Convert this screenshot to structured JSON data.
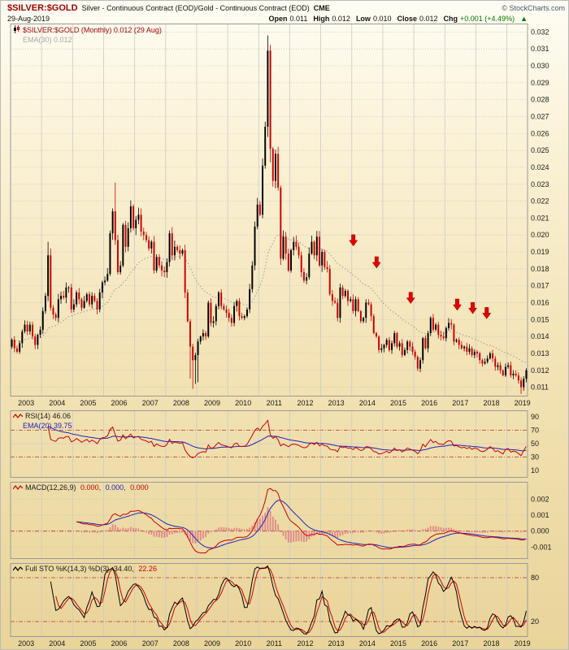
{
  "header": {
    "symbol": "$SILVER:$GOLD",
    "description": "Silver - Continuous Contract (EOD)/Gold - Continuous Contract (EOD)",
    "exchange": "CME",
    "watermark": "© StockCharts.com",
    "date": "29-Aug-2019",
    "quote": {
      "open_label": "Open",
      "open": "0.011",
      "high_label": "High",
      "high": "0.012",
      "low_label": "Low",
      "low": "0.010",
      "close_label": "Close",
      "close": "0.012",
      "chg_label": "Chg",
      "chg": "+0.001 (+4.49%)",
      "chg_arrow": "▲"
    }
  },
  "legend": {
    "main": {
      "title": "$SILVER:$GOLD (Monthly) 0.012 (29 Aug)",
      "overlay": "EMA(30) 0.012"
    },
    "rsi": {
      "title": "RSI(14) 46.06",
      "overlay": "EMA(20) 39.75"
    },
    "macd": {
      "label": "MACD(12,26,9)",
      "values": [
        "0.000,",
        "0.000,",
        "0.000"
      ]
    },
    "sto": {
      "label": "Full STO %K(14,3) %D(3)",
      "values": [
        "34.40,",
        "22.26"
      ]
    }
  },
  "colors": {
    "maroon": "#990000",
    "red": "#cc0000",
    "blue": "#2222bb",
    "green": "#007700",
    "ema_gray": "#999999",
    "hist_pink": "#e08888",
    "grid": "#bdbdbd",
    "band_red": "#b03030"
  },
  "chart_data": [
    {
      "type": "candlestick",
      "symbol": "$SILVER:$GOLD",
      "timeframe": "Monthly",
      "x_start": "2003-01",
      "months": 200,
      "ylim": [
        0.0105,
        0.0325
      ],
      "y_tick_step": 0.001,
      "x_tick_years": [
        2003,
        2004,
        2005,
        2006,
        2007,
        2008,
        2009,
        2010,
        2011,
        2012,
        2013,
        2014,
        2015,
        2016,
        2017,
        2018,
        2019
      ],
      "up_color": "#000000",
      "down_color": "#cc0000",
      "ema_color": "#999999",
      "ema_period": 30,
      "closes": [
        0.0138,
        0.0133,
        0.0131,
        0.0136,
        0.0143,
        0.0147,
        0.0143,
        0.0147,
        0.014,
        0.0135,
        0.0141,
        0.0144,
        0.0155,
        0.0164,
        0.0188,
        0.0157,
        0.0153,
        0.0151,
        0.0162,
        0.0164,
        0.0163,
        0.0169,
        0.0169,
        0.0156,
        0.0159,
        0.0166,
        0.0162,
        0.0157,
        0.0161,
        0.0165,
        0.0159,
        0.0164,
        0.0161,
        0.0156,
        0.0166,
        0.0172,
        0.0173,
        0.0177,
        0.0201,
        0.0214,
        0.0197,
        0.0178,
        0.0182,
        0.0206,
        0.0193,
        0.0204,
        0.0217,
        0.0204,
        0.0209,
        0.0212,
        0.0202,
        0.02,
        0.0197,
        0.0192,
        0.0196,
        0.0179,
        0.0187,
        0.0182,
        0.0179,
        0.0178,
        0.0184,
        0.0201,
        0.0188,
        0.0193,
        0.0191,
        0.0189,
        0.0191,
        0.0166,
        0.0149,
        0.0134,
        0.0126,
        0.0129,
        0.0137,
        0.014,
        0.0142,
        0.014,
        0.016,
        0.0148,
        0.0149,
        0.0158,
        0.0166,
        0.0158,
        0.0156,
        0.0154,
        0.0151,
        0.0148,
        0.0158,
        0.0161,
        0.0152,
        0.0151,
        0.0152,
        0.0156,
        0.0168,
        0.0182,
        0.0205,
        0.0218,
        0.0212,
        0.0241,
        0.0264,
        0.0309,
        0.0251,
        0.0232,
        0.0248,
        0.0228,
        0.0186,
        0.0199,
        0.0189,
        0.0179,
        0.0191,
        0.0196,
        0.0193,
        0.0188,
        0.0178,
        0.0173,
        0.0175,
        0.0189,
        0.0196,
        0.0188,
        0.0199,
        0.0182,
        0.019,
        0.0181,
        0.018,
        0.0165,
        0.0161,
        0.016,
        0.0151,
        0.0169,
        0.0164,
        0.0167,
        0.0161,
        0.0162,
        0.0155,
        0.0162,
        0.0155,
        0.0149,
        0.0151,
        0.016,
        0.0159,
        0.0152,
        0.0142,
        0.014,
        0.0132,
        0.0133,
        0.0135,
        0.0138,
        0.0132,
        0.0136,
        0.0142,
        0.0134,
        0.0136,
        0.0129,
        0.0132,
        0.0137,
        0.0134,
        0.0131,
        0.0128,
        0.0121,
        0.0126,
        0.0139,
        0.0133,
        0.0142,
        0.0151,
        0.0144,
        0.0147,
        0.0141,
        0.014,
        0.0139,
        0.0145,
        0.0148,
        0.0147,
        0.0137,
        0.0138,
        0.0135,
        0.0133,
        0.0134,
        0.0131,
        0.0133,
        0.0129,
        0.0131,
        0.013,
        0.0126,
        0.0124,
        0.0125,
        0.0127,
        0.013,
        0.0127,
        0.0122,
        0.0123,
        0.012,
        0.0117,
        0.0122,
        0.0123,
        0.0117,
        0.0118,
        0.0117,
        0.0114,
        0.011,
        0.0115,
        0.012
      ],
      "wick_overrides": {
        "14": {
          "high": 0.0196
        },
        "15": {
          "high": 0.0192
        },
        "40": {
          "high": 0.0231
        },
        "69": {
          "low": 0.0115
        },
        "70": {
          "low": 0.0109
        },
        "71": {
          "low": 0.0112
        },
        "72": {
          "low": 0.0113
        },
        "99": {
          "high": 0.0318
        },
        "100": {
          "low": 0.0243
        },
        "197": {
          "low": 0.0106
        }
      },
      "annotations": {
        "red_arrows_down": [
          {
            "x": 2014.05,
            "y": 0.0192
          },
          {
            "x": 2014.8,
            "y": 0.0179
          },
          {
            "x": 2015.9,
            "y": 0.0158
          },
          {
            "x": 2017.4,
            "y": 0.0154
          },
          {
            "x": 2017.9,
            "y": 0.0152
          },
          {
            "x": 2018.35,
            "y": 0.0149
          }
        ]
      }
    },
    {
      "type": "line",
      "name": "RSI",
      "period": 14,
      "overlay_ema_period": 20,
      "ylim": [
        0,
        100
      ],
      "ticks": [
        90,
        70,
        50,
        30,
        10
      ],
      "bands": [
        70,
        30
      ],
      "mid": 50,
      "line_color": "#cc0000",
      "overlay_color": "#2222bb",
      "last_value": 46.06,
      "overlay_last_value": 39.75
    },
    {
      "type": "macd",
      "params": [
        12,
        26,
        9
      ],
      "ylim": [
        -0.0017,
        0.0031
      ],
      "ticks": [
        0.002,
        0.001,
        0,
        -0.001
      ],
      "macd_color": "#cc0000",
      "signal_color": "#2222bb",
      "hist_color": "#e08888",
      "last_values": [
        0.0,
        0.0,
        0.0
      ]
    },
    {
      "type": "stochastic",
      "name": "Full STO",
      "k_params": [
        14,
        3
      ],
      "d_param": 3,
      "ylim": [
        0,
        100
      ],
      "ticks": [
        80,
        20
      ],
      "bands": [
        80,
        20
      ],
      "k_color": "#000000",
      "d_color": "#cc0000",
      "last_values": [
        34.4,
        22.26
      ]
    }
  ]
}
